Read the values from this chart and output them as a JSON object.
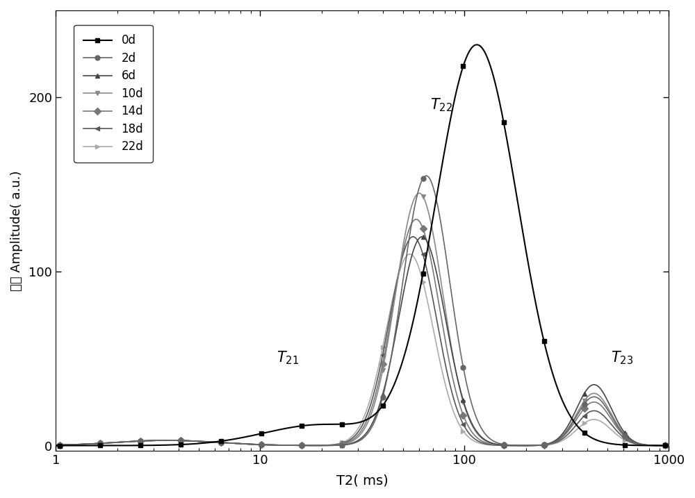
{
  "xlabel": "T2( ms)",
  "ylabel": "振幅 Amplitude( a.u.)",
  "xlim": [
    1,
    1000
  ],
  "ylim": [
    -3,
    250
  ],
  "yticks": [
    0,
    100,
    200
  ],
  "legend_labels": [
    "0d",
    "2d",
    "6d",
    "10d",
    "14d",
    "18d",
    "22d"
  ],
  "colors": [
    "#000000",
    "#666666",
    "#444444",
    "#888888",
    "#777777",
    "#555555",
    "#aaaaaa"
  ],
  "markers": [
    "s",
    "o",
    "^",
    "v",
    "D",
    "<",
    ">"
  ],
  "lws": [
    1.5,
    1.2,
    1.2,
    1.2,
    1.2,
    1.2,
    1.2
  ],
  "series_params": [
    {
      "peak1_ms": 115,
      "amp1": 230,
      "sig1": 0.2,
      "peak2_ms": 20,
      "amp2": 12,
      "sig2": 0.28,
      "peak3_ms": 0,
      "amp3": 0,
      "sig3": 0.1
    },
    {
      "peak1_ms": 65,
      "amp1": 155,
      "sig1": 0.115,
      "peak2_ms": 3.5,
      "amp2": 3,
      "sig2": 0.25,
      "peak3_ms": 430,
      "amp3": 28,
      "sig3": 0.085
    },
    {
      "peak1_ms": 62,
      "amp1": 120,
      "sig1": 0.115,
      "peak2_ms": 3.5,
      "amp2": 3,
      "sig2": 0.25,
      "peak3_ms": 430,
      "amp3": 35,
      "sig3": 0.085
    },
    {
      "peak1_ms": 60,
      "amp1": 145,
      "sig1": 0.115,
      "peak2_ms": 3.5,
      "amp2": 3,
      "sig2": 0.25,
      "peak3_ms": 430,
      "amp3": 30,
      "sig3": 0.085
    },
    {
      "peak1_ms": 58,
      "amp1": 130,
      "sig1": 0.115,
      "peak2_ms": 3.5,
      "amp2": 3,
      "sig2": 0.25,
      "peak3_ms": 430,
      "amp3": 25,
      "sig3": 0.085
    },
    {
      "peak1_ms": 56,
      "amp1": 120,
      "sig1": 0.115,
      "peak2_ms": 3.5,
      "amp2": 3,
      "sig2": 0.25,
      "peak3_ms": 430,
      "amp3": 20,
      "sig3": 0.085
    },
    {
      "peak1_ms": 54,
      "amp1": 110,
      "sig1": 0.115,
      "peak2_ms": 3.5,
      "amp2": 3,
      "sig2": 0.25,
      "peak3_ms": 430,
      "amp3": 15,
      "sig3": 0.085
    }
  ],
  "ann_t21": [
    12,
    48
  ],
  "ann_t22": [
    68,
    193
  ],
  "ann_t23": [
    520,
    48
  ],
  "n_markers": 16
}
